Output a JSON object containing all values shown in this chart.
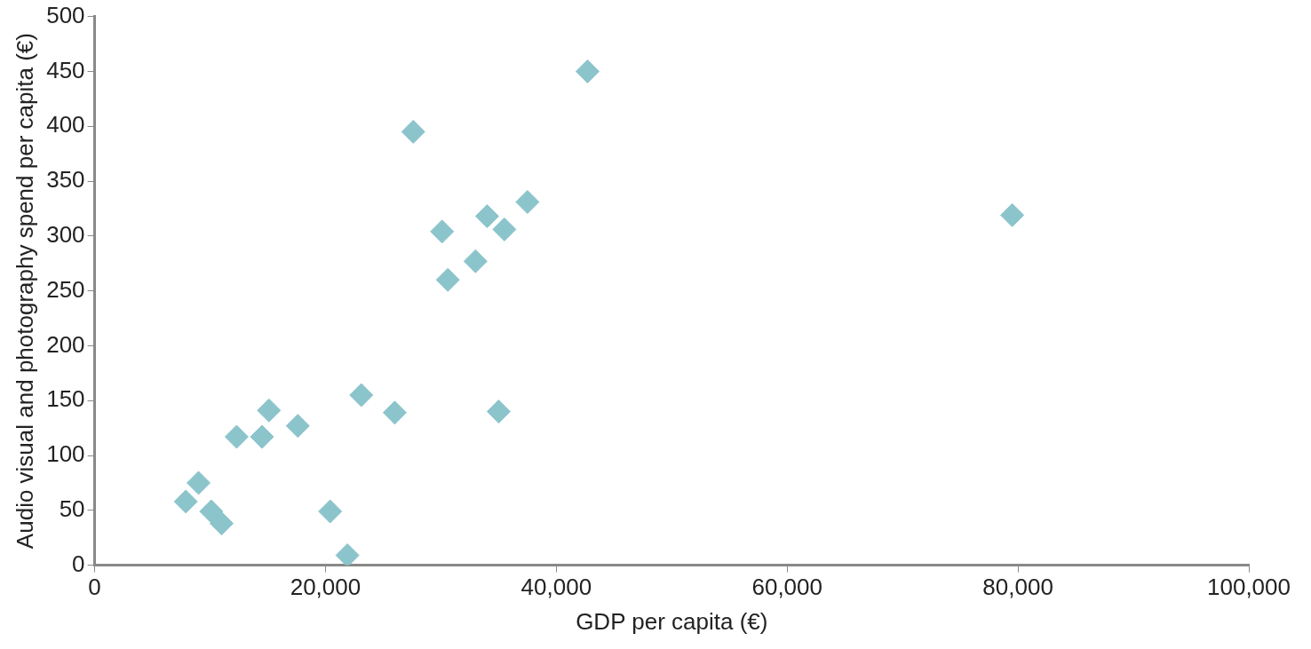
{
  "chart_data": {
    "type": "scatter",
    "xlabel": "GDP per capita (€)",
    "ylabel": "Audio visual and photography spend per capita (€)",
    "x": [
      42700,
      27600,
      37500,
      34000,
      35500,
      30100,
      33000,
      30600,
      79500,
      23100,
      26000,
      35000,
      15100,
      17600,
      12300,
      14500,
      20400,
      21900,
      9000,
      7900,
      10100,
      11000
    ],
    "series": [
      {
        "color": "#8cc4cc",
        "values": [
          450,
          395,
          331,
          318,
          306,
          304,
          277,
          260,
          319,
          155,
          139,
          140,
          141,
          127,
          117,
          117,
          49,
          9,
          75,
          58,
          49,
          38
        ]
      }
    ],
    "xlim": [
      0,
      100000
    ],
    "xticks": [
      {
        "value": 0,
        "label": "0"
      },
      {
        "value": 20000,
        "label": "20,000"
      },
      {
        "value": 40000,
        "label": "40,000"
      },
      {
        "value": 60000,
        "label": "60,000"
      },
      {
        "value": 80000,
        "label": "80,000"
      },
      {
        "value": 100000,
        "label": "100,000"
      }
    ],
    "ylim": [
      0,
      500
    ],
    "yticks": [
      0,
      50,
      100,
      150,
      200,
      250,
      300,
      350,
      400,
      450,
      500
    ],
    "grid": false,
    "legend": false,
    "marker": "diamond"
  }
}
